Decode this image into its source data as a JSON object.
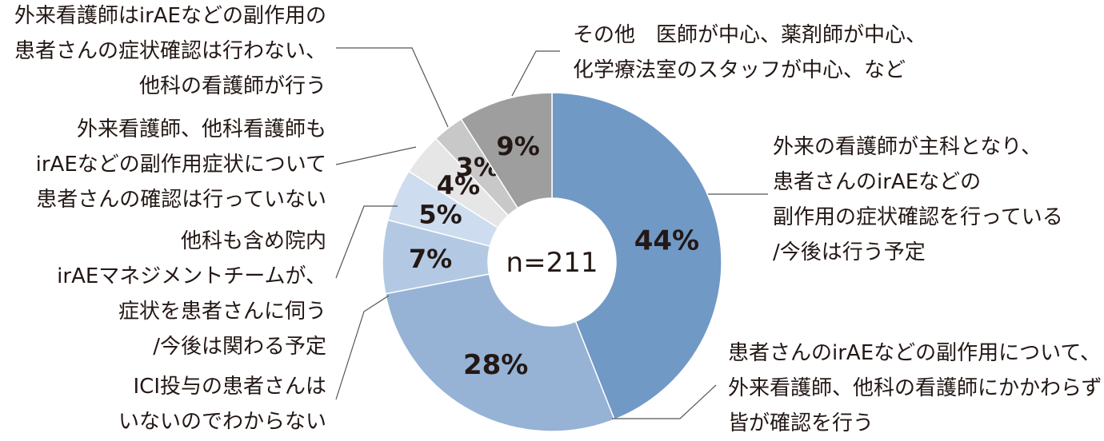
{
  "chart_data": {
    "type": "pie",
    "donut": true,
    "center_text": "n=211",
    "slices": [
      {
        "label": [
          "外来の看護師が主科となり、",
          "患者さんのirAEなどの",
          "副作用の症状確認を行っている",
          "/今後は行う予定"
        ],
        "value": 44,
        "value_label": "44%",
        "color": "#7199c6"
      },
      {
        "label": [
          "患者さんのirAEなどの副作用について、",
          "外来看護師、他科の看護師にかかわらず",
          "皆が確認を行う"
        ],
        "value": 28,
        "value_label": "28%",
        "color": "#96b3d6"
      },
      {
        "label": [
          "ICI投与の患者さんは",
          "いないのでわからない"
        ],
        "value": 7,
        "value_label": "7%",
        "color": "#b3c9e3"
      },
      {
        "label": [
          "他科も含め院内",
          "irAEマネジメントチームが、",
          "症状を患者さんに伺う",
          "/今後は関わる予定"
        ],
        "value": 5,
        "value_label": "5%",
        "color": "#cddcee"
      },
      {
        "label": [
          "外来看護師、他科看護師も",
          "irAEなどの副作用症状について",
          "患者さんの確認は行っていない"
        ],
        "value": 4,
        "value_label": "4%",
        "color": "#e6e6e6"
      },
      {
        "label": [
          "外来看護師はirAEなどの副作用の",
          "患者さんの症状確認は行わない、",
          "他科の看護師が行う"
        ],
        "value": 3,
        "value_label": "3%",
        "color": "#c8c8c8"
      },
      {
        "label": [
          "その他　医師が中心、薬剤師が中心、",
          "化学療法室のスタッフが中心、など"
        ],
        "value": 9,
        "value_label": "9%",
        "color": "#9e9e9e"
      }
    ]
  }
}
